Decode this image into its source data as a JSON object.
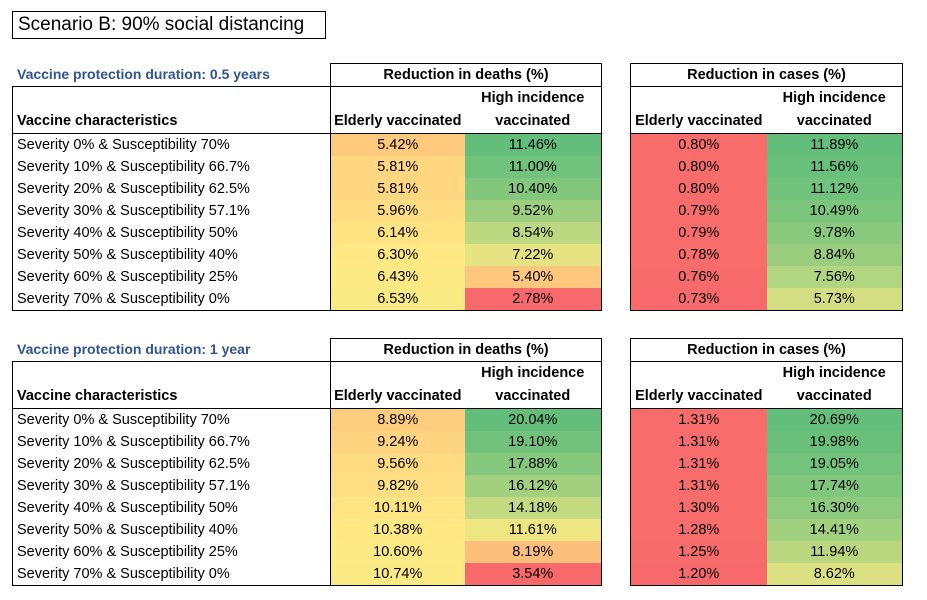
{
  "title": "Scenario B: 90% social distancing",
  "deaths_header": "Reduction in deaths (%)",
  "cases_header": "Reduction in cases (%)",
  "col_characteristics": "Vaccine characteristics",
  "col_elderly": "Elderly vaccinated",
  "col_high_line1": "High incidence",
  "col_high_line2": "vaccinated",
  "sections": [
    {
      "title": "Vaccine protection duration: 0.5 years",
      "rows": [
        {
          "label": "Severity 0% & Susceptibility 70%",
          "deaths_elderly": "5.42%",
          "deaths_high": "11.46%",
          "cases_elderly": "0.80%",
          "cases_high": "11.89%"
        },
        {
          "label": "Severity 10% & Susceptibility 66.7%",
          "deaths_elderly": "5.81%",
          "deaths_high": "11.00%",
          "cases_elderly": "0.80%",
          "cases_high": "11.56%"
        },
        {
          "label": "Severity 20% & Susceptibility 62.5%",
          "deaths_elderly": "5.81%",
          "deaths_high": "10.40%",
          "cases_elderly": "0.80%",
          "cases_high": "11.12%"
        },
        {
          "label": "Severity 30% & Susceptibility 57.1%",
          "deaths_elderly": "5.96%",
          "deaths_high": "9.52%",
          "cases_elderly": "0.79%",
          "cases_high": "10.49%"
        },
        {
          "label": "Severity 40% & Susceptibility 50%",
          "deaths_elderly": "6.14%",
          "deaths_high": "8.54%",
          "cases_elderly": "0.79%",
          "cases_high": "9.78%"
        },
        {
          "label": "Severity 50% & Susceptibility 40%",
          "deaths_elderly": "6.30%",
          "deaths_high": "7.22%",
          "cases_elderly": "0.78%",
          "cases_high": "8.84%"
        },
        {
          "label": "Severity 60% & Susceptibility 25%",
          "deaths_elderly": "6.43%",
          "deaths_high": "5.40%",
          "cases_elderly": "0.76%",
          "cases_high": "7.56%"
        },
        {
          "label": "Severity 70% & Susceptibility 0%",
          "deaths_elderly": "6.53%",
          "deaths_high": "2.78%",
          "cases_elderly": "0.73%",
          "cases_high": "5.73%"
        }
      ]
    },
    {
      "title": "Vaccine protection duration: 1 year",
      "rows": [
        {
          "label": "Severity 0% & Susceptibility 70%",
          "deaths_elderly": "8.89%",
          "deaths_high": "20.04%",
          "cases_elderly": "1.31%",
          "cases_high": "20.69%"
        },
        {
          "label": "Severity 10% & Susceptibility 66.7%",
          "deaths_elderly": "9.24%",
          "deaths_high": "19.10%",
          "cases_elderly": "1.31%",
          "cases_high": "19.98%"
        },
        {
          "label": "Severity 20% & Susceptibility 62.5%",
          "deaths_elderly": "9.56%",
          "deaths_high": "17.88%",
          "cases_elderly": "1.31%",
          "cases_high": "19.05%"
        },
        {
          "label": "Severity 30% & Susceptibility 57.1%",
          "deaths_elderly": "9.82%",
          "deaths_high": "16.12%",
          "cases_elderly": "1.31%",
          "cases_high": "17.74%"
        },
        {
          "label": "Severity 40% & Susceptibility 50%",
          "deaths_elderly": "10.11%",
          "deaths_high": "14.18%",
          "cases_elderly": "1.30%",
          "cases_high": "16.30%"
        },
        {
          "label": "Severity 50% & Susceptibility 40%",
          "deaths_elderly": "10.38%",
          "deaths_high": "11.61%",
          "cases_elderly": "1.28%",
          "cases_high": "14.41%"
        },
        {
          "label": "Severity 60% & Susceptibility 25%",
          "deaths_elderly": "10.60%",
          "deaths_high": "8.19%",
          "cases_elderly": "1.25%",
          "cases_high": "11.94%"
        },
        {
          "label": "Severity 70% & Susceptibility 0%",
          "deaths_elderly": "10.74%",
          "deaths_high": "3.54%",
          "cases_elderly": "1.20%",
          "cases_high": "8.62%"
        }
      ]
    }
  ],
  "color_scale": {
    "low": "#f8696b",
    "mid": "#ffeb84",
    "high": "#63be7b"
  }
}
